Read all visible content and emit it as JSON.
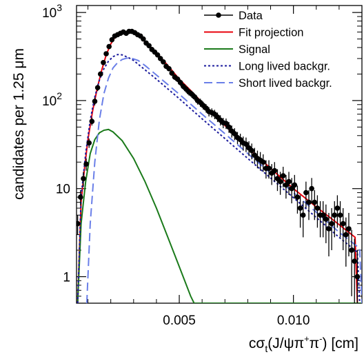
{
  "chart_data": {
    "type": "scatter",
    "xlabel": {
      "main": "cσ",
      "sub": "t",
      "rest1": "(J/ψπ",
      "sup1": "+",
      "rest2": "π",
      "sup2": "-",
      "rest3": ") [cm]"
    },
    "ylabel": "candidates per 1.25 μm",
    "xlim": [
      0.0005,
      0.013
    ],
    "ylim": [
      0.5,
      1200
    ],
    "y_scale": "log",
    "x_ticks": [
      {
        "value": 0.005,
        "label": "0.005"
      },
      {
        "value": 0.01,
        "label": "0.010"
      }
    ],
    "y_ticks": [
      {
        "value": 1,
        "label": "1"
      },
      {
        "value": 10,
        "label": "10"
      },
      {
        "value": 100,
        "label": "10",
        "exp": "2"
      },
      {
        "value": 1000,
        "label": "10",
        "exp": "3"
      }
    ],
    "legend": {
      "position": "top-right",
      "entries": [
        {
          "name": "Data",
          "style": "marker"
        },
        {
          "name": "Fit projection",
          "style": "solid",
          "color": "#e8000b"
        },
        {
          "name": "Signal",
          "style": "solid",
          "color": "#1a7a1a"
        },
        {
          "name": "Long lived backgr.",
          "style": "dotted",
          "color": "#1a1a9c"
        },
        {
          "name": "Short lived backgr.",
          "style": "dashed",
          "color": "#6a7fe8"
        }
      ]
    },
    "series": [
      {
        "name": "Data",
        "type": "points",
        "color": "#000000",
        "points": [
          [
            0.00055,
            4.0,
            1.0
          ],
          [
            0.000675,
            8.0,
            1.6
          ],
          [
            0.0008,
            13.0,
            2.5
          ],
          [
            0.000925,
            19.0,
            3.0
          ],
          [
            0.00105,
            33.0,
            4.0
          ],
          [
            0.001175,
            58.0,
            6.0
          ],
          [
            0.0013,
            98.0,
            10.0
          ],
          [
            0.001425,
            140.0,
            12.0
          ],
          [
            0.00155,
            200.0,
            14.0
          ],
          [
            0.001675,
            270.0,
            16.0
          ],
          [
            0.0018,
            340.0,
            18.0
          ],
          [
            0.001925,
            410.0,
            20.0
          ],
          [
            0.00205,
            490.0,
            22.0
          ],
          [
            0.002175,
            540.0,
            23.0
          ],
          [
            0.0023,
            560.0,
            24.0
          ],
          [
            0.002425,
            580.0,
            24.0
          ],
          [
            0.00255,
            600.0,
            24.0
          ],
          [
            0.002675,
            580.0,
            24.0
          ],
          [
            0.0028,
            610.0,
            25.0
          ],
          [
            0.002925,
            610.0,
            25.0
          ],
          [
            0.00305,
            590.0,
            24.0
          ],
          [
            0.003175,
            560.0,
            24.0
          ],
          [
            0.0033,
            540.0,
            23.0
          ],
          [
            0.003425,
            500.0,
            22.0
          ],
          [
            0.00355,
            450.0,
            21.0
          ],
          [
            0.003675,
            420.0,
            20.0
          ],
          [
            0.0038,
            380.0,
            20.0
          ],
          [
            0.003925,
            355.0,
            19.0
          ],
          [
            0.00405,
            330.0,
            18.0
          ],
          [
            0.004175,
            300.0,
            17.0
          ],
          [
            0.0043,
            275.0,
            17.0
          ],
          [
            0.004425,
            245.0,
            16.0
          ],
          [
            0.00455,
            230.0,
            15.0
          ],
          [
            0.004675,
            205.0,
            14.0
          ],
          [
            0.0048,
            185.0,
            14.0
          ],
          [
            0.004925,
            175.0,
            13.0
          ],
          [
            0.00505,
            160.0,
            13.0
          ],
          [
            0.005175,
            145.0,
            12.0
          ],
          [
            0.0053,
            135.0,
            12.0
          ],
          [
            0.005425,
            125.0,
            11.0
          ],
          [
            0.00555,
            118.0,
            11.0
          ],
          [
            0.005675,
            110.0,
            10.0
          ],
          [
            0.0058,
            100.0,
            10.0
          ],
          [
            0.005925,
            95.0,
            10.0
          ],
          [
            0.00605,
            88.0,
            9.0
          ],
          [
            0.006175,
            82.0,
            9.0
          ],
          [
            0.0063,
            75.0,
            9.0
          ],
          [
            0.006425,
            73.0,
            8.5
          ],
          [
            0.00655,
            70.0,
            8.5
          ],
          [
            0.006675,
            65.0,
            8.0
          ],
          [
            0.0068,
            60.0,
            8.0
          ],
          [
            0.006925,
            56.0,
            7.5
          ],
          [
            0.00705,
            55.0,
            7.5
          ],
          [
            0.007175,
            50.0,
            7.0
          ],
          [
            0.0073,
            45.0,
            7.0
          ],
          [
            0.007425,
            42.0,
            6.5
          ],
          [
            0.00755,
            38.0,
            6.0
          ],
          [
            0.007675,
            36.0,
            6.0
          ],
          [
            0.0078,
            33.0,
            6.0
          ],
          [
            0.007925,
            32.0,
            6.0
          ],
          [
            0.00805,
            29.0,
            5.5
          ],
          [
            0.008175,
            27.0,
            5.5
          ],
          [
            0.0083,
            24.0,
            5.0
          ],
          [
            0.008425,
            22.0,
            5.0
          ],
          [
            0.00855,
            21.0,
            5.0
          ],
          [
            0.008675,
            20.0,
            4.5
          ],
          [
            0.0088,
            17.0,
            4.0
          ],
          [
            0.008925,
            17.0,
            4.0
          ],
          [
            0.00905,
            15.0,
            4.0
          ],
          [
            0.009175,
            16.0,
            4.0
          ],
          [
            0.0093,
            13.0,
            3.6
          ],
          [
            0.009425,
            12.0,
            3.5
          ],
          [
            0.00955,
            14.0,
            3.7
          ],
          [
            0.009675,
            11.0,
            3.3
          ],
          [
            0.0098,
            12.0,
            3.5
          ],
          [
            0.009925,
            10.0,
            3.2
          ],
          [
            0.01005,
            11.0,
            3.3
          ],
          [
            0.010175,
            8.0,
            2.8
          ],
          [
            0.0103,
            6.0,
            2.4
          ],
          [
            0.010425,
            5.0,
            2.2
          ],
          [
            0.01055,
            9.0,
            3.0
          ],
          [
            0.010675,
            7.0,
            2.6
          ],
          [
            0.0108,
            10.0,
            3.2
          ],
          [
            0.010925,
            7.0,
            2.6
          ],
          [
            0.01105,
            6.0,
            2.4
          ],
          [
            0.011175,
            5.0,
            2.2
          ],
          [
            0.0113,
            5.0,
            2.2
          ],
          [
            0.011425,
            4.5,
            2.1
          ],
          [
            0.01155,
            3.5,
            1.8
          ],
          [
            0.011675,
            4.0,
            2.0
          ],
          [
            0.0118,
            5.0,
            2.2
          ],
          [
            0.011925,
            6.0,
            2.4
          ],
          [
            0.01205,
            5.0,
            2.2
          ],
          [
            0.012175,
            4.0,
            2.0
          ],
          [
            0.0123,
            3.0,
            1.7
          ],
          [
            0.012425,
            3.5,
            1.8
          ],
          [
            0.01255,
            2.0,
            1.4
          ],
          [
            0.012675,
            1.5,
            1.2
          ],
          [
            0.0128,
            1.0,
            1.0
          ]
        ]
      },
      {
        "name": "Fit projection",
        "type": "line",
        "color": "#e8000b",
        "points": [
          [
            0.00055,
            0.5
          ],
          [
            0.0007,
            7
          ],
          [
            0.00085,
            17
          ],
          [
            0.001,
            36
          ],
          [
            0.0012,
            75
          ],
          [
            0.0014,
            135
          ],
          [
            0.0016,
            220
          ],
          [
            0.0018,
            330
          ],
          [
            0.002,
            440
          ],
          [
            0.0022,
            530
          ],
          [
            0.0024,
            580
          ],
          [
            0.0026,
            600
          ],
          [
            0.0028,
            600
          ],
          [
            0.003,
            580
          ],
          [
            0.0033,
            520
          ],
          [
            0.0036,
            440
          ],
          [
            0.004,
            350
          ],
          [
            0.0045,
            250
          ],
          [
            0.005,
            175
          ],
          [
            0.0055,
            130
          ],
          [
            0.006,
            95
          ],
          [
            0.007,
            52
          ],
          [
            0.008,
            29
          ],
          [
            0.009,
            17
          ],
          [
            0.01,
            10
          ],
          [
            0.011,
            6.2
          ],
          [
            0.012,
            3.9
          ],
          [
            0.0127,
            2.8
          ],
          [
            0.0128,
            0.5
          ]
        ]
      },
      {
        "name": "Signal",
        "type": "line",
        "color": "#1a7a1a",
        "points": [
          [
            0.00055,
            0.5
          ],
          [
            0.0007,
            4
          ],
          [
            0.0009,
            12
          ],
          [
            0.0011,
            25
          ],
          [
            0.0013,
            36
          ],
          [
            0.0015,
            43
          ],
          [
            0.0017,
            46
          ],
          [
            0.0019,
            47
          ],
          [
            0.0021,
            44
          ],
          [
            0.0025,
            35
          ],
          [
            0.003,
            22
          ],
          [
            0.0035,
            12
          ],
          [
            0.004,
            6
          ],
          [
            0.0045,
            2.8
          ],
          [
            0.005,
            1.3
          ],
          [
            0.0055,
            0.6
          ],
          [
            0.00565,
            0.5
          ],
          [
            0.013,
            0.5
          ]
        ]
      },
      {
        "name": "Long lived backgr.",
        "type": "line",
        "color": "#1a1a9c",
        "points": [
          [
            0.00055,
            0.5
          ],
          [
            0.0007,
            8
          ],
          [
            0.0009,
            25
          ],
          [
            0.0011,
            60
          ],
          [
            0.0013,
            110
          ],
          [
            0.0015,
            170
          ],
          [
            0.0017,
            230
          ],
          [
            0.0019,
            280
          ],
          [
            0.0021,
            315
          ],
          [
            0.0023,
            333
          ],
          [
            0.0025,
            330
          ],
          [
            0.0028,
            305
          ],
          [
            0.003,
            285
          ],
          [
            0.004,
            175
          ],
          [
            0.005,
            105
          ],
          [
            0.006,
            62
          ],
          [
            0.007,
            37
          ],
          [
            0.008,
            22
          ],
          [
            0.009,
            13.2
          ],
          [
            0.01,
            7.9
          ],
          [
            0.011,
            4.7
          ],
          [
            0.012,
            2.8
          ],
          [
            0.0128,
            1.9
          ],
          [
            0.0129,
            0.5
          ]
        ]
      },
      {
        "name": "Short lived backgr.",
        "type": "line",
        "color": "#6a7fe8",
        "points": [
          [
            0.00095,
            0.5
          ],
          [
            0.001,
            1.0
          ],
          [
            0.0011,
            4
          ],
          [
            0.0013,
            20
          ],
          [
            0.0015,
            60
          ],
          [
            0.0017,
            120
          ],
          [
            0.0019,
            180
          ],
          [
            0.0021,
            235
          ],
          [
            0.0023,
            270
          ],
          [
            0.0025,
            293
          ],
          [
            0.0027,
            303
          ],
          [
            0.0029,
            303
          ],
          [
            0.0032,
            285
          ],
          [
            0.0035,
            250
          ],
          [
            0.004,
            195
          ],
          [
            0.005,
            118
          ],
          [
            0.006,
            70
          ],
          [
            0.007,
            42
          ],
          [
            0.008,
            25
          ],
          [
            0.009,
            15
          ],
          [
            0.01,
            9
          ],
          [
            0.011,
            5.4
          ],
          [
            0.012,
            3.2
          ],
          [
            0.0129,
            2.1
          ],
          [
            0.013,
            0.5
          ]
        ]
      }
    ]
  }
}
